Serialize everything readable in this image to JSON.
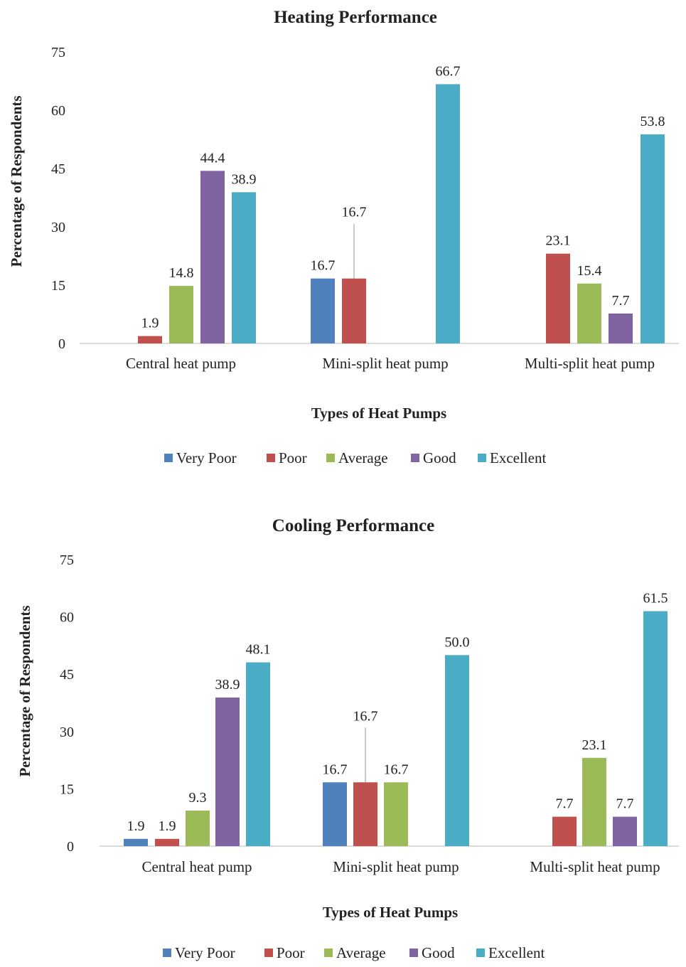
{
  "chart_data": [
    {
      "type": "bar",
      "title": "Heating Performance",
      "xlabel": "Types of Heat Pumps",
      "ylabel": "Percentage of Respondents",
      "ylim": [
        0,
        75
      ],
      "yticks": [
        0,
        15,
        30,
        45,
        60,
        75
      ],
      "categories": [
        "Central heat pump",
        "Mini-split heat pump",
        "Multi-split heat pump"
      ],
      "series": [
        {
          "name": "Very Poor",
          "color": "#4F81BD",
          "values": [
            null,
            16.7,
            null
          ],
          "labels": [
            null,
            "16.7",
            null
          ]
        },
        {
          "name": "Poor",
          "color": "#C0504D",
          "values": [
            1.9,
            16.7,
            23.1
          ],
          "labels": [
            "1.9",
            "16.7",
            "23.1"
          ]
        },
        {
          "name": "Average",
          "color": "#9BBB59",
          "values": [
            14.8,
            null,
            15.4
          ],
          "labels": [
            "14.8",
            null,
            "15.4"
          ]
        },
        {
          "name": "Good",
          "color": "#8064A2",
          "values": [
            44.4,
            null,
            7.7
          ],
          "labels": [
            "44.4",
            null,
            "7.7"
          ]
        },
        {
          "name": "Excellent",
          "color": "#4BACC6",
          "values": [
            38.9,
            66.7,
            53.8
          ],
          "labels": [
            "38.9",
            "66.7",
            "53.8"
          ]
        }
      ],
      "legend": "bottom",
      "grid": false
    },
    {
      "type": "bar",
      "title": "Cooling Performance",
      "xlabel": "Types of Heat Pumps",
      "ylabel": "Percentage of Respondents",
      "ylim": [
        0,
        75
      ],
      "yticks": [
        0,
        15,
        30,
        45,
        60,
        75
      ],
      "categories": [
        "Central heat pump",
        "Mini-split heat pump",
        "Multi-split heat pump"
      ],
      "series": [
        {
          "name": "Very Poor",
          "color": "#4F81BD",
          "values": [
            1.9,
            16.7,
            null
          ],
          "labels": [
            "1.9",
            "16.7",
            null
          ]
        },
        {
          "name": "Poor",
          "color": "#C0504D",
          "values": [
            1.9,
            16.7,
            7.7
          ],
          "labels": [
            "1.9",
            "16.7",
            "7.7"
          ]
        },
        {
          "name": "Average",
          "color": "#9BBB59",
          "values": [
            9.3,
            16.7,
            23.1
          ],
          "labels": [
            "9.3",
            "16.7",
            "23.1"
          ]
        },
        {
          "name": "Good",
          "color": "#8064A2",
          "values": [
            38.9,
            null,
            7.7
          ],
          "labels": [
            "38.9",
            null,
            "7.7"
          ]
        },
        {
          "name": "Excellent",
          "color": "#4BACC6",
          "values": [
            48.1,
            50.0,
            61.5
          ],
          "labels": [
            "48.1",
            "50.0",
            "61.5"
          ]
        }
      ],
      "legend": "bottom",
      "grid": false
    }
  ]
}
